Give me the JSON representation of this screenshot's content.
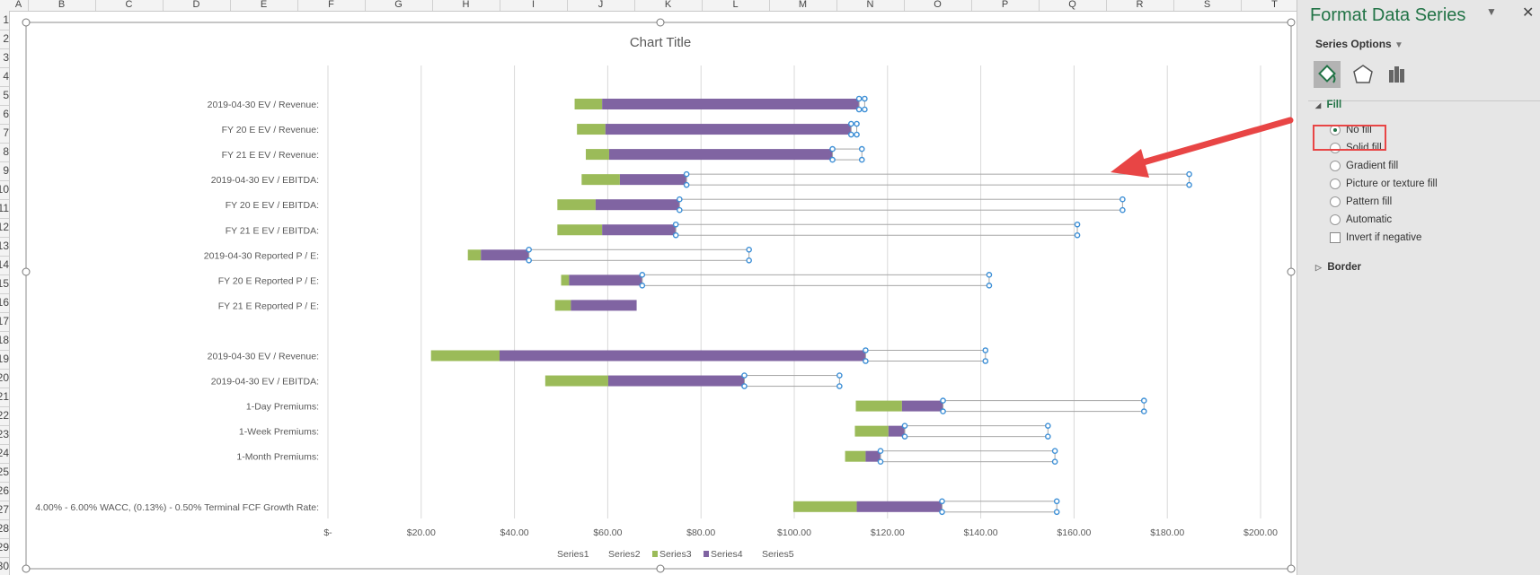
{
  "sheet": {
    "columns": [
      "A",
      "B",
      "C",
      "D",
      "E",
      "F",
      "G",
      "H",
      "I",
      "J",
      "K",
      "L",
      "M",
      "N",
      "O",
      "P",
      "Q",
      "R",
      "S",
      "T"
    ],
    "rows": [
      "1",
      "2",
      "3",
      "4",
      "5",
      "6",
      "7",
      "8",
      "9",
      "10",
      "11",
      "12",
      "13",
      "14",
      "15",
      "16",
      "17",
      "18",
      "19",
      "20",
      "21",
      "22",
      "23",
      "24",
      "25",
      "26",
      "27",
      "28",
      "29",
      "30"
    ]
  },
  "chart_data": {
    "type": "bar",
    "orientation": "horizontal-stacked",
    "title": "Chart Title",
    "categories": [
      "2019-04-30 EV / Revenue:",
      "FY 20 E EV / Revenue:",
      "FY 21 E EV / Revenue:",
      "2019-04-30 EV / EBITDA:",
      "FY 20 E EV / EBITDA:",
      "FY 21 E EV / EBITDA:",
      "2019-04-30 Reported P / E:",
      "FY 20 E Reported P / E:",
      "FY 21 E Reported P / E:",
      "",
      "2019-04-30 EV / Revenue:",
      "2019-04-30 EV / EBITDA:",
      "1-Day Premiums:",
      "1-Week Premiums:",
      "1-Month Premiums:",
      "",
      "4.00% - 6.00% WACC, (0.13%) - 0.50% Terminal FCF Growth Rate:"
    ],
    "series": [
      {
        "name": "Series1",
        "color": "none",
        "values": [
          52.9,
          53.4,
          55.3,
          54.4,
          49.2,
          49.2,
          30.0,
          50.0,
          48.7,
          0,
          22.1,
          46.6,
          113.2,
          113.0,
          110.9,
          0,
          99.8
        ]
      },
      {
        "name": "Series2",
        "color": "none",
        "values": [
          0,
          0,
          0,
          0,
          0,
          0,
          0,
          0,
          0,
          0,
          0,
          0,
          0,
          0,
          0,
          0,
          0
        ]
      },
      {
        "name": "Series3",
        "color": "#9bbb59",
        "values": [
          5.9,
          6.1,
          5.0,
          8.2,
          8.2,
          9.6,
          2.8,
          1.7,
          3.4,
          0,
          14.7,
          13.5,
          9.9,
          7.2,
          4.4,
          0,
          13.6
        ]
      },
      {
        "name": "Series4",
        "color": "#8064a2",
        "values": [
          55.1,
          52.7,
          47.9,
          14.3,
          18.0,
          15.8,
          10.3,
          15.7,
          14.1,
          0,
          78.5,
          29.2,
          8.8,
          3.5,
          3.2,
          0,
          18.3
        ]
      },
      {
        "name": "Series5",
        "color": "none",
        "outline": "#a6a6a6",
        "selected": true,
        "values": [
          1.2,
          1.2,
          6.3,
          107.8,
          95.0,
          86.1,
          47.2,
          74.4,
          0,
          0,
          25.7,
          20.4,
          43.1,
          30.7,
          37.4,
          0,
          24.6
        ]
      }
    ],
    "xticks": [
      "$-",
      "$20.00",
      "$40.00",
      "$60.00",
      "$80.00",
      "$100.00",
      "$120.00",
      "$140.00",
      "$160.00",
      "$180.00",
      "$200.00"
    ],
    "xlim": [
      0,
      200
    ],
    "grid": true,
    "legend": "bottom"
  },
  "panel": {
    "title": "Format Data Series",
    "series_options": "Series Options",
    "tabs": [
      "fill-line-icon",
      "effects-icon",
      "series-options-icon"
    ],
    "fill_section": "Fill",
    "fill_options": [
      {
        "label": "No fill",
        "selected": true
      },
      {
        "label": "Solid fill",
        "selected": false
      },
      {
        "label": "Gradient fill",
        "selected": false
      },
      {
        "label": "Picture or texture fill",
        "selected": false
      },
      {
        "label": "Pattern fill",
        "selected": false
      },
      {
        "label": "Automatic",
        "selected": false
      }
    ],
    "invert_label": "Invert if negative",
    "border_section": "Border",
    "accent": "#217346"
  },
  "annotation": {
    "color": "#e84545"
  }
}
